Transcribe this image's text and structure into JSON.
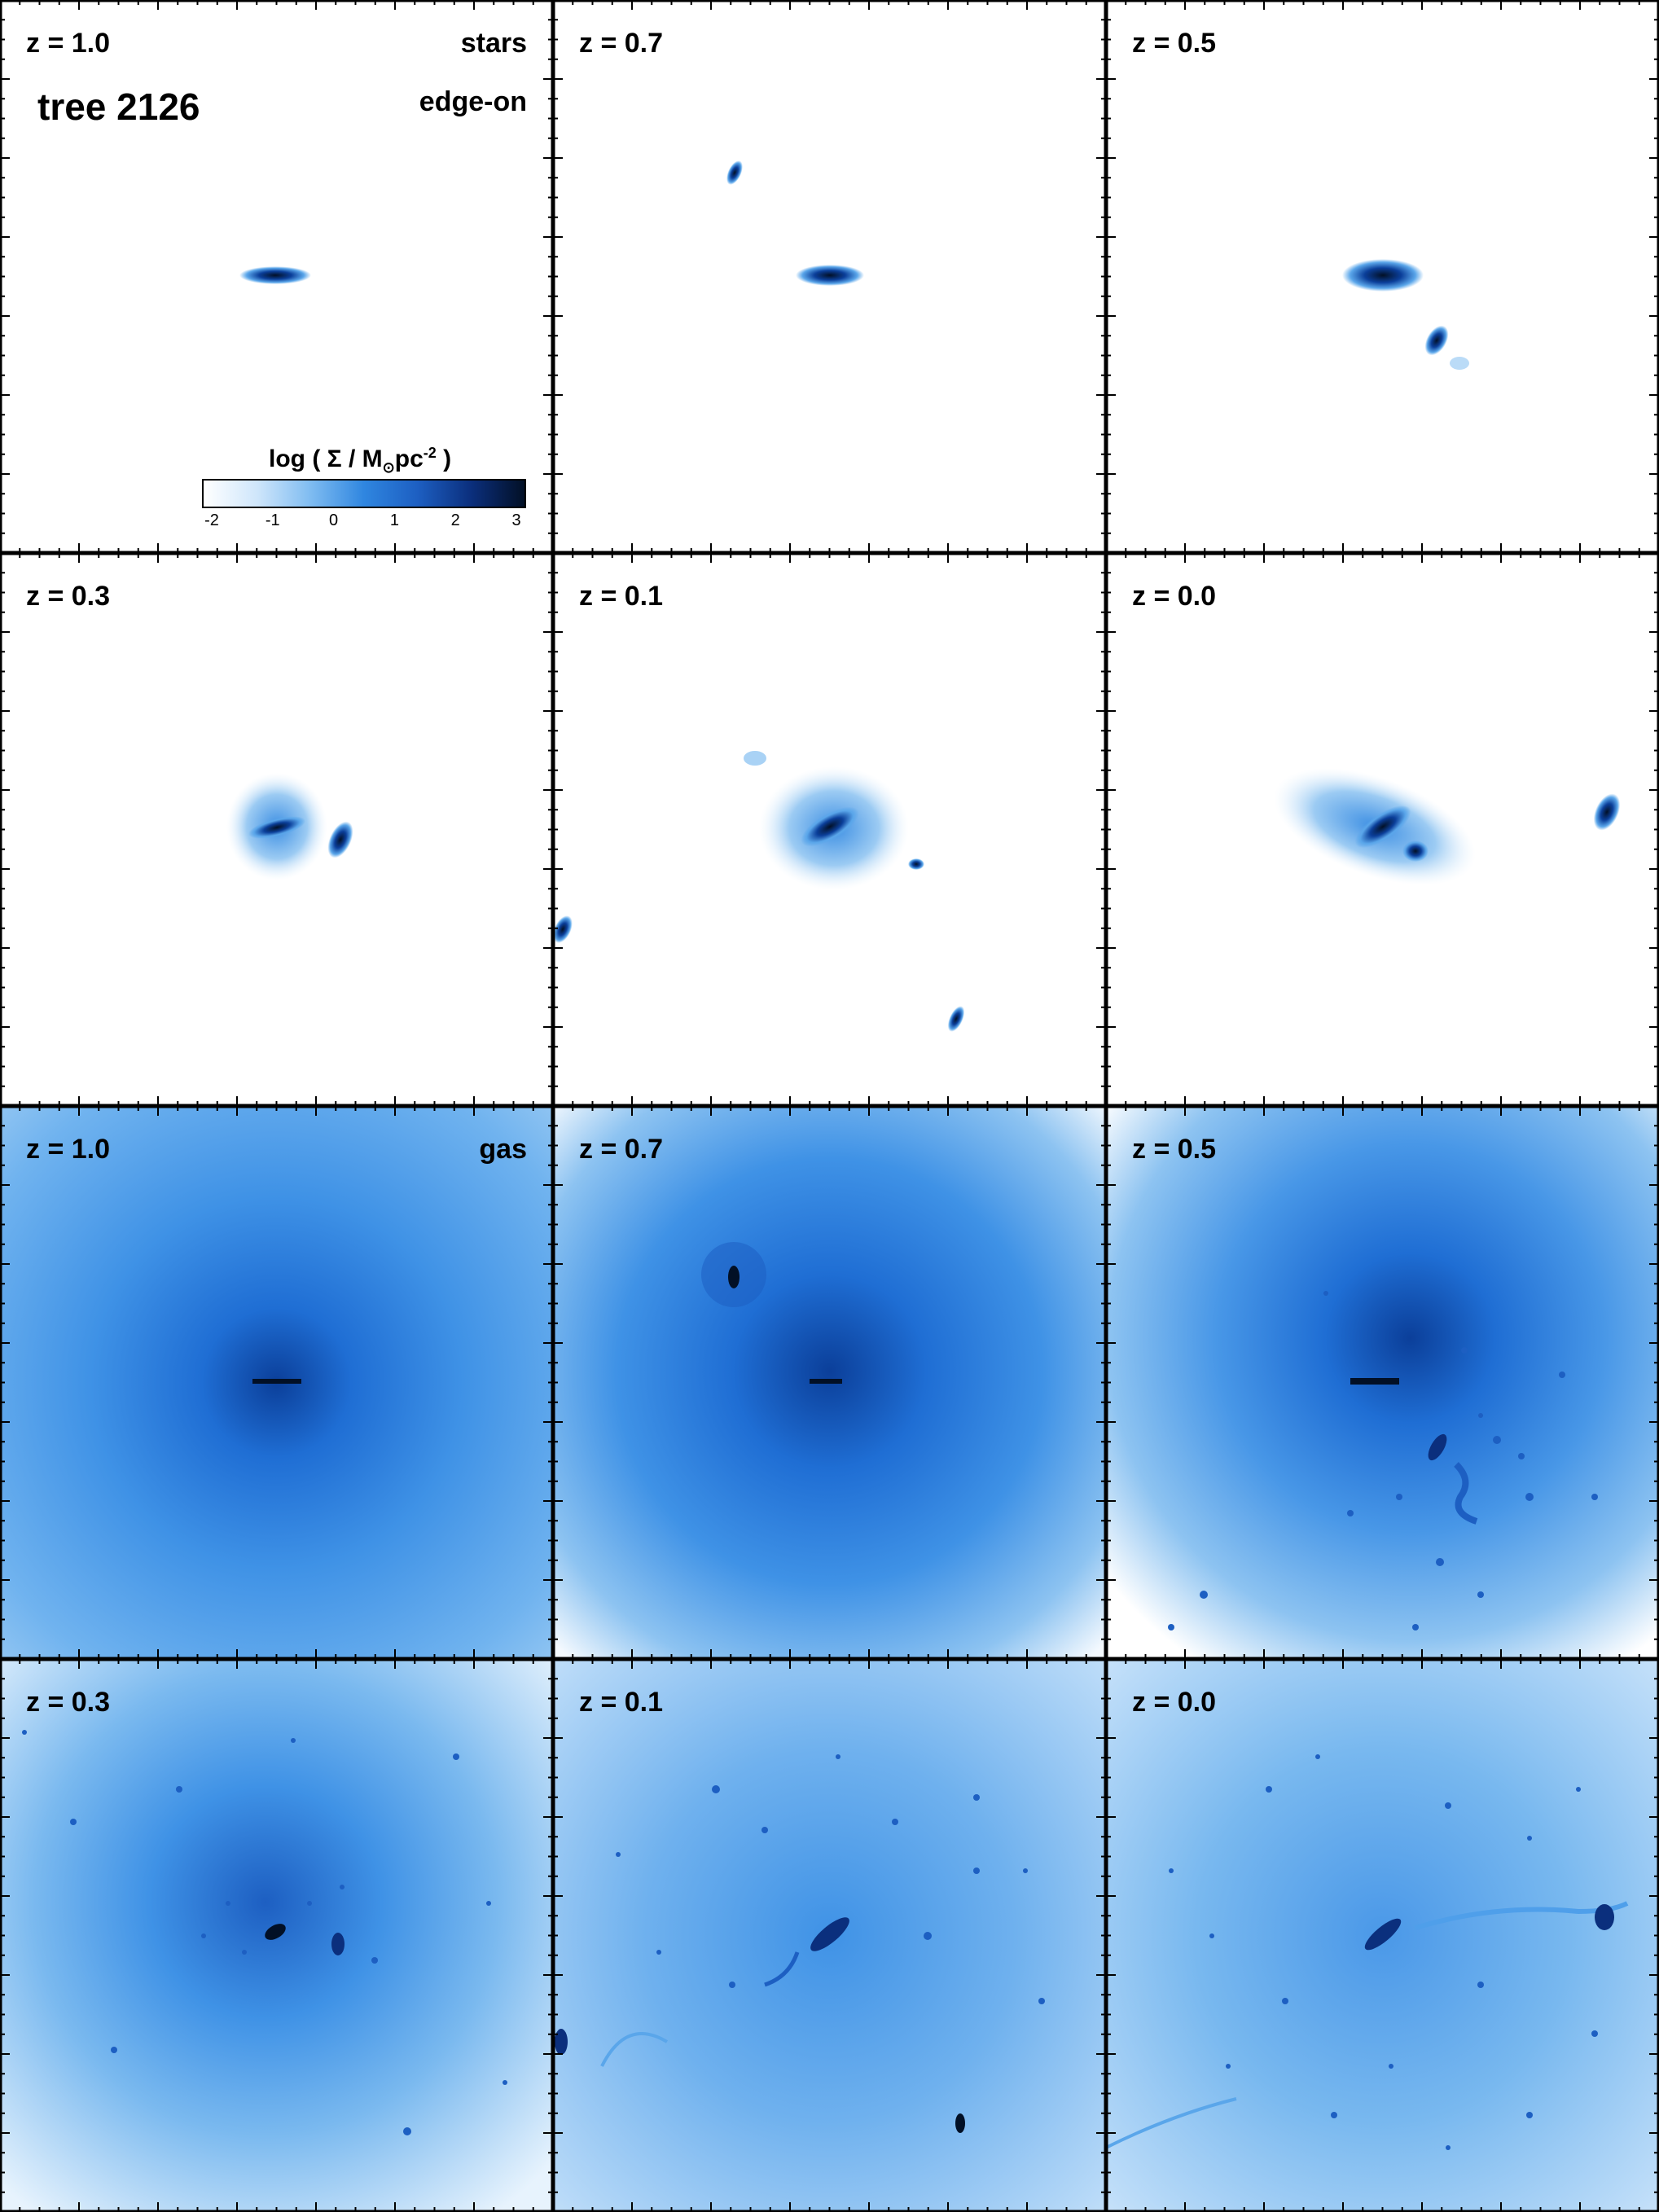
{
  "figure": {
    "tree_label": "tree 2126",
    "view_label": "edge-on",
    "colorbar": {
      "title_prefix": "log ( Σ / M",
      "title_sub": "⊙",
      "title_mid": "pc",
      "title_sup": "-2",
      "title_suffix": ")",
      "ticks": [
        "-2",
        "-1",
        "0",
        "1",
        "2",
        "3"
      ],
      "range": [
        -2,
        3
      ],
      "colors": [
        "#ffffff",
        "#cfe6fb",
        "#7fbcf1",
        "#2f86e0",
        "#1d5fc2",
        "#0b2f7d",
        "#021026"
      ]
    }
  },
  "panels": [
    {
      "id": "stars-z1.0",
      "component": "stars",
      "redshift": "z = 1.0",
      "right_label": "stars"
    },
    {
      "id": "stars-z0.7",
      "component": "stars",
      "redshift": "z = 0.7"
    },
    {
      "id": "stars-z0.5",
      "component": "stars",
      "redshift": "z = 0.5"
    },
    {
      "id": "stars-z0.3",
      "component": "stars",
      "redshift": "z = 0.3"
    },
    {
      "id": "stars-z0.1",
      "component": "stars",
      "redshift": "z = 0.1"
    },
    {
      "id": "stars-z0.0",
      "component": "stars",
      "redshift": "z = 0.0"
    },
    {
      "id": "gas-z1.0",
      "component": "gas",
      "redshift": "z = 1.0",
      "right_label": "gas"
    },
    {
      "id": "gas-z0.7",
      "component": "gas",
      "redshift": "z = 0.7"
    },
    {
      "id": "gas-z0.5",
      "component": "gas",
      "redshift": "z = 0.5"
    },
    {
      "id": "gas-z0.3",
      "component": "gas",
      "redshift": "z = 0.3"
    },
    {
      "id": "gas-z0.1",
      "component": "gas",
      "redshift": "z = 0.1"
    },
    {
      "id": "gas-z0.0",
      "component": "gas",
      "redshift": "z = 0.0"
    }
  ]
}
